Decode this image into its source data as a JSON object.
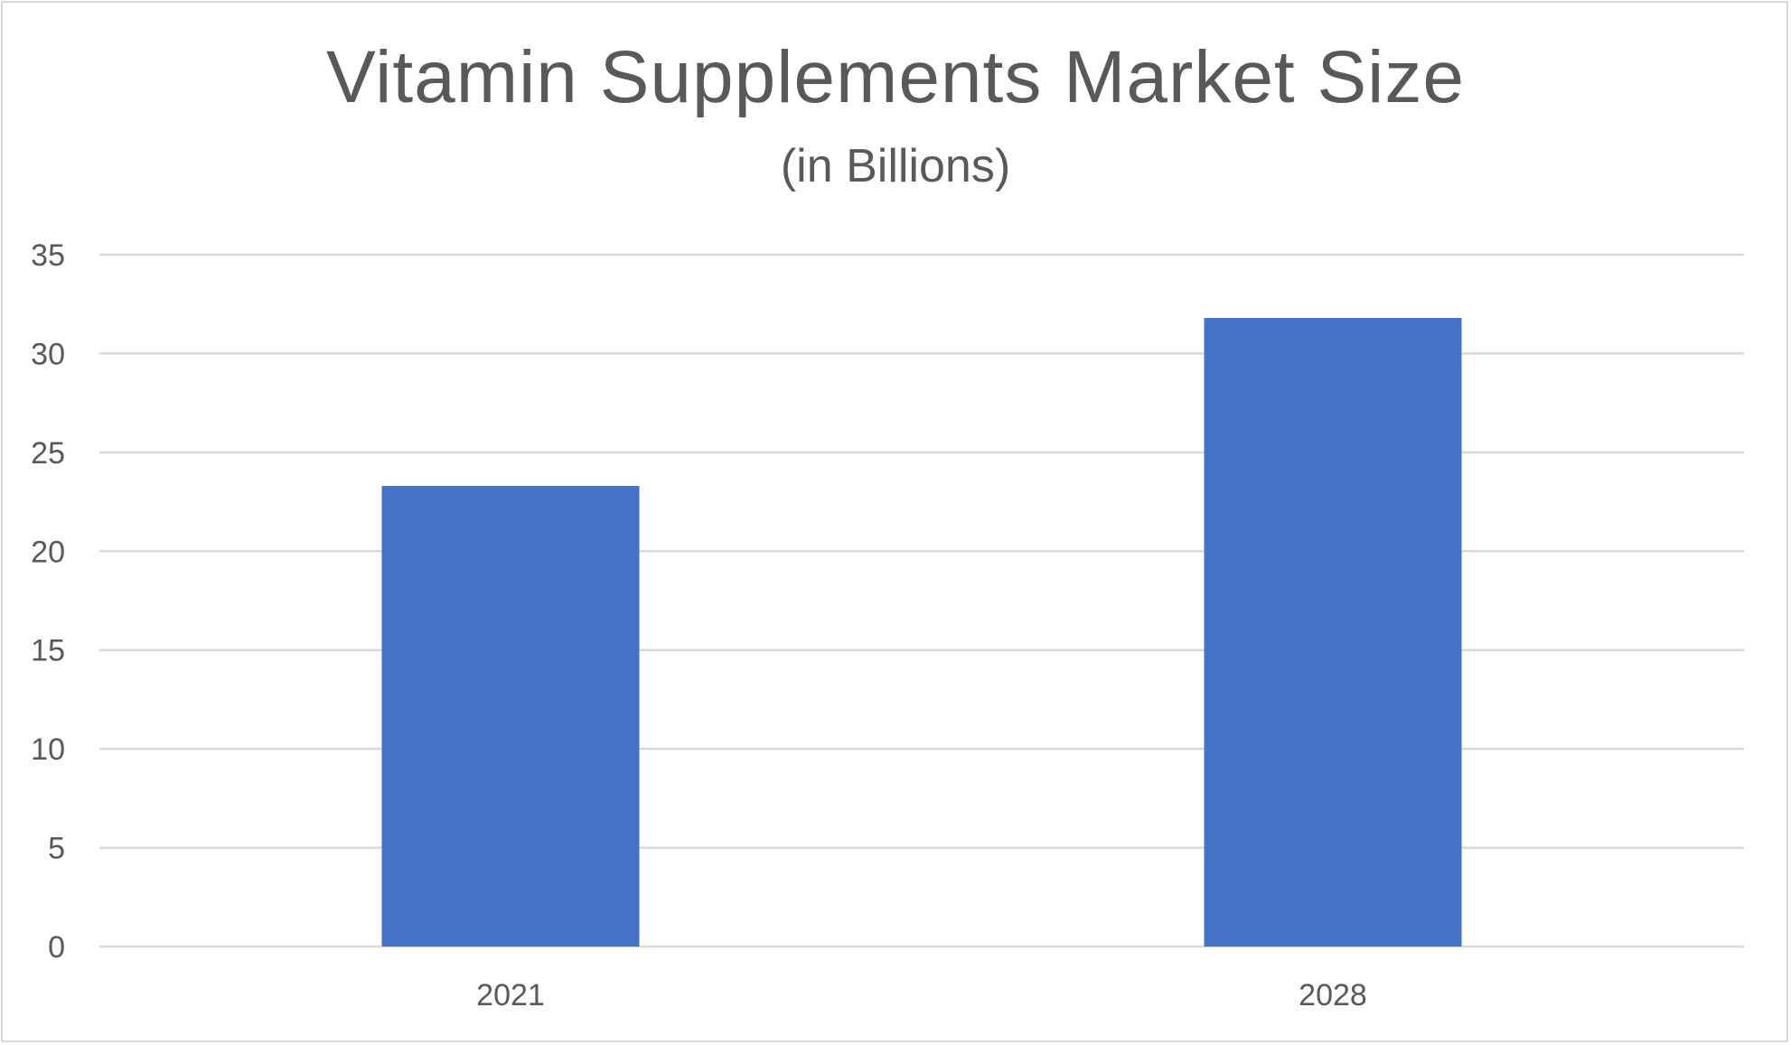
{
  "chart_data": {
    "type": "bar",
    "title": "Vitamin Supplements Market Size",
    "subtitle": "(in Billions)",
    "categories": [
      "2021",
      "2028"
    ],
    "values": [
      23.3,
      31.8
    ],
    "ylim": [
      0,
      35
    ],
    "yticks": [
      0,
      5,
      10,
      15,
      20,
      25,
      30,
      35
    ],
    "grid": true,
    "legend": "none",
    "xlabel": "",
    "ylabel": ""
  },
  "colors": {
    "bar": "#4472c4",
    "grid": "#d9d9d9",
    "text": "#595959"
  }
}
